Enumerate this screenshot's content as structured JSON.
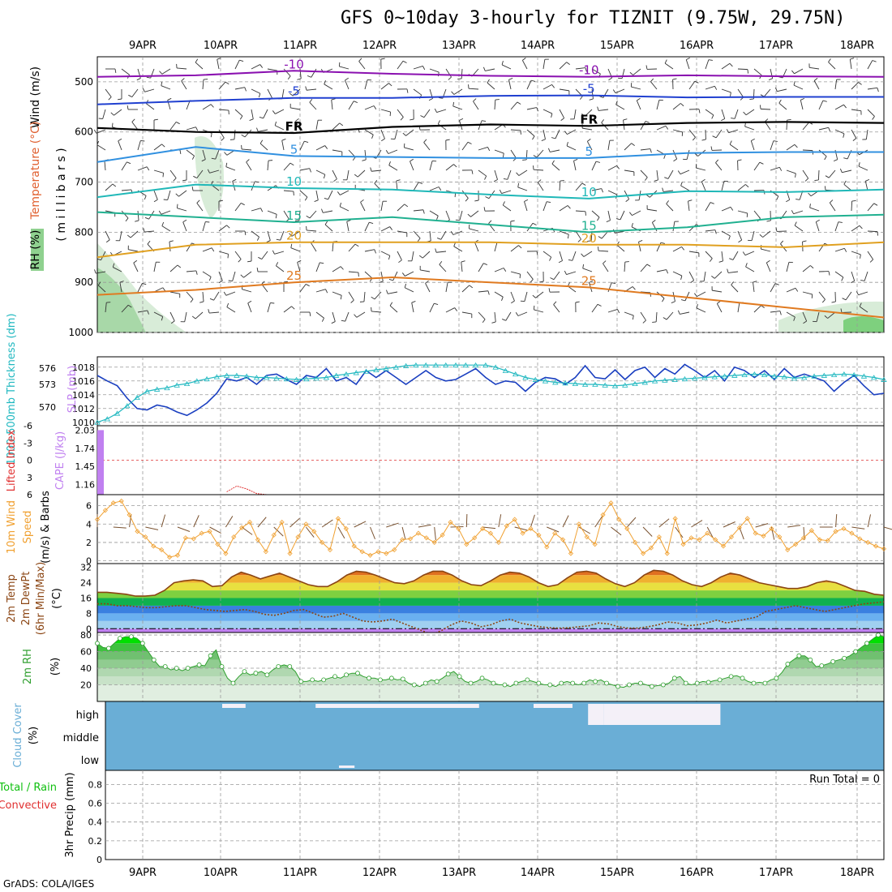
{
  "title": "GFS 0~10day 3-hourly for TIZNIT (9.75W, 29.75N)",
  "credit": "GrADS: COLA/IGES",
  "colors": {
    "rh_shade": "#8fd18f",
    "temp_label": "#e06030",
    "wind_label": "#3050c0",
    "thickness": "#20b8c0",
    "slp": "#1a3fc0",
    "cape": "#c080f0",
    "li": "#e03030",
    "wind10": "#f0a030",
    "barb": "#7a5230",
    "temp2m": "#8b4513",
    "dewpt": "#8b4513",
    "rh2m": "#30a030",
    "cloud": "#6aaed6",
    "cloud_gap": "#f4f0f8",
    "precip_total": "#10c010",
    "precip_conv": "#e03030"
  },
  "chart_data": [
    {
      "panel": "upper-air",
      "type": "contour",
      "x_ticks": [
        "9APR",
        "10APR",
        "11APR",
        "12APR",
        "13APR",
        "14APR",
        "15APR",
        "16APR",
        "17APR",
        "18APR"
      ],
      "ylabel_parts": [
        "RH (%)",
        "Temperature (°C)",
        "Wind (m/s)"
      ],
      "ylabel_units": "( m i l l i b a r s )",
      "y_ticks": [
        500,
        600,
        700,
        800,
        900,
        1000
      ],
      "ylim": [
        1000,
        450
      ],
      "contours": [
        {
          "label": "-10",
          "color": "#8a10b0",
          "p": [
            490,
            487,
            478,
            484,
            488,
            490,
            487,
            489,
            490
          ]
        },
        {
          "label": "-5",
          "color": "#2040d0",
          "p": [
            545,
            538,
            532,
            532,
            528,
            527,
            531,
            530,
            530
          ]
        },
        {
          "label": "FR",
          "color": "#000000",
          "p": [
            592,
            600,
            602,
            590,
            585,
            588,
            582,
            580,
            582
          ]
        },
        {
          "label": "5",
          "color": "#3090e0",
          "p": [
            660,
            630,
            648,
            650,
            652,
            652,
            642,
            640,
            640
          ]
        },
        {
          "label": "10",
          "color": "#20b8b8",
          "p": [
            730,
            705,
            712,
            715,
            725,
            733,
            718,
            720,
            715
          ]
        },
        {
          "label": "15",
          "color": "#20b090",
          "p": [
            760,
            770,
            780,
            770,
            785,
            800,
            790,
            770,
            765
          ]
        },
        {
          "label": "20",
          "color": "#e0a020",
          "p": [
            850,
            825,
            820,
            820,
            820,
            825,
            825,
            830,
            820
          ]
        },
        {
          "label": "25",
          "color": "#e07a20",
          "p": [
            925,
            915,
            900,
            890,
            900,
            910,
            930,
            950,
            970
          ]
        }
      ],
      "contour_labels_shown": [
        "-10",
        "-10",
        "-5",
        "-5",
        "FR",
        "FR",
        "FR",
        "5",
        "5",
        "10",
        "10",
        "15",
        "15",
        "20",
        "20",
        "25",
        "10",
        "10",
        "15"
      ]
    },
    {
      "panel": "slp-thickness",
      "type": "line",
      "ylabel_left": "1000-500mb Thickness (dm)",
      "ylabel_right": "SLP (mb)",
      "thickness_ticks": [
        570,
        573,
        576
      ],
      "slp_ticks": [
        1010,
        1012,
        1014,
        1016,
        1018
      ],
      "slp_ylim": [
        1009.5,
        1019.5
      ],
      "series": [
        {
          "axis": "slp",
          "values": [
            1016.8,
            1016,
            1015.3,
            1013.5,
            1012,
            1011.8,
            1012.5,
            1012.2,
            1011.5,
            1011,
            1011.8,
            1012.8,
            1014.2,
            1016.3,
            1016,
            1016.5,
            1015.5,
            1016.8,
            1017,
            1016.2,
            1015.5,
            1016.8,
            1016.5,
            1017.8,
            1016,
            1016.5,
            1015.5,
            1017.5,
            1016.5,
            1017.5,
            1016.5,
            1015.5,
            1016.5,
            1017.5,
            1016.5,
            1016,
            1016.2,
            1017,
            1017.8,
            1016.5,
            1015.5,
            1016,
            1015.8,
            1014.5,
            1015.8,
            1016.5,
            1016.3,
            1015.5,
            1016.5,
            1018.2,
            1016.5,
            1016.3,
            1017.6,
            1016.2,
            1017.5,
            1018,
            1016.5,
            1017.8,
            1017,
            1018.4,
            1017.5,
            1016.5,
            1017.5,
            1016,
            1018,
            1017.5,
            1016.5,
            1017.5,
            1016.2,
            1017.8,
            1016.5,
            1017,
            1016.5,
            1016,
            1014.5,
            1015.8,
            1016.8,
            1015.3,
            1014,
            1014.2
          ]
        },
        {
          "axis": "slp",
          "values": [
            1010,
            1010.5,
            1011.3,
            1012.4,
            1013.6,
            1014.5,
            1014.8,
            1015,
            1015.4,
            1015.6,
            1016,
            1016.3,
            1016.6,
            1016.8,
            1016.8,
            1016.7,
            1016.5,
            1016.5,
            1016.4,
            1016.3,
            1016.2,
            1016.3,
            1016.4,
            1016.5,
            1016.8,
            1017,
            1017.2,
            1017.4,
            1017.6,
            1017.8,
            1018,
            1018.2,
            1018.3,
            1018.3,
            1018.3,
            1018.3,
            1018.3,
            1018.3,
            1018.3,
            1018.3,
            1018,
            1017.5,
            1017,
            1016.5,
            1016.2,
            1016,
            1015.8,
            1015.7,
            1015.6,
            1015.5,
            1015.5,
            1015.4,
            1015.3,
            1015.4,
            1015.6,
            1015.8,
            1016,
            1016.1,
            1016.2,
            1016.3,
            1016.4,
            1016.5,
            1016.6,
            1016.7,
            1016.8,
            1016.9,
            1017,
            1016.9,
            1016.7,
            1016.6,
            1016.4,
            1016.5,
            1016.7,
            1016.8,
            1016.9,
            1017,
            1016.9,
            1016.7,
            1016.5,
            1016.2
          ]
        }
      ]
    },
    {
      "panel": "cape-li",
      "type": "bar",
      "ylabel_left": "Lifted Index",
      "ylabel_right": "CAPE (J/kg)",
      "li_ticks": [
        "-6",
        "-3",
        "0",
        "3",
        "6"
      ],
      "cape_ticks": [
        "2.03",
        "1.74",
        "1.45",
        "1.16"
      ],
      "cape_ylim": [
        1.0,
        2.1
      ],
      "cape_values": [
        2.03,
        0,
        0,
        0,
        0,
        0,
        0,
        0,
        0,
        0,
        0,
        0,
        0,
        0,
        0,
        0,
        0,
        0,
        0,
        0,
        0,
        0,
        0,
        0,
        0,
        0,
        0,
        0,
        0,
        0,
        0,
        0,
        0,
        0,
        0,
        0,
        0,
        0,
        0,
        0,
        0,
        0,
        0,
        0,
        0,
        0,
        0,
        0,
        0,
        0,
        0,
        0,
        0,
        0,
        0,
        0,
        0,
        0,
        0,
        0,
        0,
        0,
        0,
        0,
        0,
        0,
        0,
        0,
        0,
        0,
        0,
        0,
        0,
        0,
        0,
        0,
        0,
        0,
        0,
        0
      ],
      "li_ylim": [
        -6,
        6
      ],
      "li_values": [
        null,
        null,
        null,
        null,
        null,
        null,
        null,
        null,
        null,
        null,
        null,
        null,
        null,
        5.5,
        4.5,
        5,
        5.8,
        6,
        null,
        6,
        null,
        null,
        null,
        null,
        null,
        null,
        null,
        null,
        null,
        null,
        null,
        null,
        null,
        null,
        null,
        null,
        null,
        null,
        null,
        null,
        null,
        null,
        null,
        null,
        null,
        null,
        null,
        null,
        null,
        null,
        null,
        null,
        null,
        null,
        null,
        null,
        null,
        null,
        null,
        null,
        null,
        null,
        null,
        null,
        null,
        null,
        null,
        null,
        null,
        null,
        null,
        null,
        null,
        null,
        null,
        null,
        null,
        null,
        null,
        null
      ]
    },
    {
      "panel": "wind10m",
      "type": "line",
      "ylabel": "10m Wind Speed (m/s) & Barbs",
      "y_ticks": [
        0,
        2,
        4,
        6
      ],
      "ylim": [
        -0.3,
        7.2
      ],
      "values": [
        4.5,
        5.5,
        6.3,
        6.5,
        5,
        3.2,
        2.6,
        1.6,
        1.2,
        0.4,
        0.6,
        2.5,
        2.4,
        3,
        3.2,
        1.8,
        0.8,
        2.6,
        3.6,
        4.2,
        2.3,
        1,
        2.8,
        4.2,
        0.8,
        2.6,
        4,
        3.2,
        2,
        1.2,
        4.6,
        3.5,
        1.6,
        1,
        0.6,
        1,
        0.8,
        1.2,
        2.3,
        2.4,
        3,
        2.5,
        2,
        2.8,
        4.2,
        3.5,
        1.8,
        2.5,
        3.5,
        3,
        2,
        3.8,
        4.5,
        3,
        3.5,
        2.8,
        1.5,
        3,
        2.3,
        0.8,
        4,
        2.6,
        1.8,
        5,
        6.3,
        4.5,
        3.5,
        2,
        0.8,
        1.4,
        2.6,
        0.8,
        4.6,
        1.8,
        2.5,
        2.3,
        3,
        2.3,
        1.6,
        2.6,
        3.6,
        4.6,
        3,
        2.7,
        3.5,
        2.6,
        1.2,
        1.8,
        2.5,
        3.3,
        2.3,
        2.2,
        3.2,
        3.5,
        3,
        2.4,
        2,
        1.6,
        1.3
      ]
    },
    {
      "panel": "temp2m",
      "type": "area",
      "ylabel": "2m Temp 2m DewPt (6hr Min/Max) (°C)",
      "y_ticks": [
        0,
        8,
        16,
        24,
        32
      ],
      "ylim": [
        -2,
        34
      ],
      "temp": [
        19,
        19,
        18.5,
        18,
        17,
        17,
        17.5,
        20,
        24,
        25,
        25.5,
        25,
        22,
        22.5,
        27,
        29.5,
        28,
        26,
        27.5,
        29,
        27,
        25,
        23,
        22,
        22,
        24.5,
        28,
        30,
        29.5,
        28,
        26,
        24,
        23.5,
        25,
        28,
        30,
        30,
        28,
        25,
        23,
        22.5,
        25,
        28,
        29.5,
        29,
        27,
        24,
        22,
        23,
        26.5,
        29.5,
        30,
        29,
        26,
        23.5,
        22,
        24,
        28,
        30.5,
        30,
        28,
        25,
        23,
        22,
        24,
        27,
        29,
        28,
        26,
        24,
        23,
        22,
        21,
        21,
        22,
        24,
        25,
        24,
        22,
        20,
        19.5,
        18,
        17.5
      ],
      "dewpt": [
        13,
        13,
        12,
        12,
        11.5,
        11,
        11,
        11.5,
        12,
        12,
        11,
        10,
        9.5,
        9,
        9.5,
        10,
        9,
        7.5,
        7,
        8,
        9.5,
        10,
        8,
        6,
        6.5,
        8,
        6,
        4,
        3.5,
        4,
        5,
        3,
        1,
        -1,
        -3,
        -1,
        2,
        4,
        3,
        1,
        2,
        4,
        5,
        3,
        2,
        1,
        0.5,
        0.3,
        0.5,
        1,
        1.5,
        3,
        2.5,
        1,
        0.3,
        0.3,
        1,
        2,
        3.5,
        3,
        1.5,
        2,
        3,
        4.5,
        3,
        4,
        5,
        6,
        9,
        10,
        11,
        12,
        11,
        10,
        9,
        10,
        11,
        12,
        13,
        13.5,
        14
      ]
    },
    {
      "panel": "rh2m",
      "type": "area",
      "ylabel": "2m RH (%)",
      "y_ticks": [
        20,
        40,
        60,
        80
      ],
      "ylim": [
        0,
        83
      ],
      "values": [
        70,
        65,
        64,
        70,
        76,
        78,
        78,
        76,
        70,
        60,
        50,
        42,
        42,
        38,
        40,
        37,
        40,
        42,
        44,
        43,
        55,
        62,
        42,
        28,
        22,
        30,
        36,
        32,
        34,
        36,
        32,
        38,
        42,
        44,
        42,
        36,
        24,
        24,
        26,
        24,
        26,
        28,
        30,
        28,
        32,
        34,
        34,
        30,
        28,
        28,
        26,
        26,
        28,
        26,
        27,
        22,
        20,
        18,
        22,
        26,
        24,
        28,
        33,
        36,
        30,
        24,
        22,
        24,
        28,
        26,
        22,
        20,
        20,
        18,
        22,
        24,
        26,
        24,
        22,
        20,
        20,
        18,
        22,
        24,
        22,
        20,
        22,
        26,
        24,
        26,
        22,
        20,
        18,
        17,
        20,
        22,
        22,
        20,
        18,
        19,
        20,
        22,
        28,
        30,
        22,
        20,
        22,
        24,
        23,
        25,
        26,
        28,
        30,
        31,
        28,
        24,
        22,
        23,
        22,
        26,
        28,
        35,
        45,
        50,
        55,
        55,
        50,
        42,
        43,
        45,
        48,
        50,
        52,
        55,
        60,
        65,
        70,
        75,
        80,
        78
      ]
    },
    {
      "panel": "cloud",
      "type": "heatmap",
      "ylabel": "Cloud Cover (%)",
      "levels": [
        "high",
        "middle",
        "low"
      ],
      "high_gaps": [
        [
          0.15,
          0.18
        ],
        [
          0.27,
          0.3
        ],
        [
          0.3,
          0.48
        ],
        [
          0.55,
          0.6
        ],
        [
          0.62,
          0.64
        ],
        [
          0.64,
          0.79
        ]
      ],
      "low_gaps": [
        [
          0.3,
          0.32
        ]
      ]
    },
    {
      "panel": "precip",
      "type": "bar",
      "ylabel_left": "Total / Rain Convective",
      "ylabel_right": "3hr Precip (mm)",
      "y_ticks": [
        "0",
        "0.2",
        "0.4",
        "0.6",
        "0.8"
      ],
      "ylim": [
        0,
        0.95
      ],
      "run_total": "Run Total = 0",
      "values": []
    }
  ]
}
